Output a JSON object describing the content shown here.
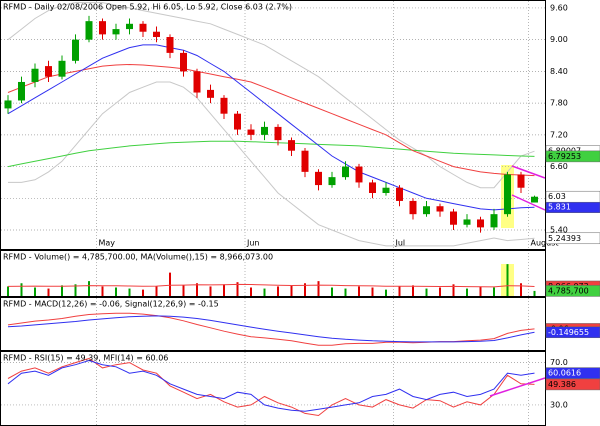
{
  "chart_data": [
    {
      "type": "candlestick",
      "title": "RFMD - Daily 02/08/2006 Open 5.92, Hi 6.05, Lo 5.92, Close 6.03 (2.7%)",
      "categories": [
        null,
        null,
        null,
        null,
        null,
        null,
        null,
        "May",
        null,
        null,
        null,
        null,
        null,
        null,
        null,
        null,
        null,
        null,
        "Jun",
        null,
        null,
        null,
        null,
        null,
        null,
        null,
        null,
        null,
        null,
        "Jul",
        null,
        null,
        null,
        null,
        null,
        null,
        null,
        null,
        null,
        "August"
      ],
      "open": [
        7.7,
        7.85,
        8.2,
        8.5,
        8.3,
        8.6,
        9.0,
        9.35,
        9.1,
        9.2,
        9.3,
        9.15,
        9.05,
        8.75,
        8.4,
        8.05,
        7.9,
        7.6,
        7.3,
        7.2,
        7.35,
        7.1,
        6.9,
        6.5,
        6.25,
        6.4,
        6.6,
        6.3,
        6.1,
        6.2,
        5.95,
        5.7,
        5.85,
        5.75,
        5.5,
        5.6,
        5.45,
        5.7,
        6.45,
        5.92
      ],
      "high": [
        7.95,
        8.3,
        8.55,
        8.6,
        8.7,
        9.1,
        9.45,
        9.4,
        9.3,
        9.4,
        9.35,
        9.25,
        9.1,
        8.8,
        8.45,
        8.15,
        7.95,
        7.65,
        7.4,
        7.45,
        7.4,
        7.15,
        6.95,
        6.55,
        6.5,
        6.7,
        6.65,
        6.35,
        6.3,
        6.25,
        6.0,
        5.95,
        5.9,
        5.8,
        5.7,
        5.65,
        5.8,
        6.5,
        6.5,
        6.05
      ],
      "low": [
        7.6,
        7.8,
        8.1,
        8.2,
        8.25,
        8.55,
        8.95,
        9.0,
        9.0,
        9.1,
        9.05,
        8.95,
        8.65,
        8.3,
        7.9,
        7.8,
        7.5,
        7.2,
        7.1,
        7.1,
        7.0,
        6.8,
        6.4,
        6.15,
        6.2,
        6.35,
        6.2,
        6.0,
        6.05,
        5.85,
        5.6,
        5.65,
        5.65,
        5.4,
        5.45,
        5.35,
        5.4,
        5.65,
        6.1,
        5.92
      ],
      "close": [
        7.85,
        8.2,
        8.45,
        8.3,
        8.6,
        9.0,
        9.35,
        9.1,
        9.2,
        9.3,
        9.15,
        9.05,
        8.75,
        8.4,
        8.0,
        7.9,
        7.6,
        7.3,
        7.2,
        7.35,
        7.1,
        6.9,
        6.5,
        6.25,
        6.4,
        6.6,
        6.3,
        6.1,
        6.2,
        5.95,
        5.7,
        5.85,
        5.75,
        5.5,
        5.6,
        5.45,
        5.7,
        6.45,
        6.2,
        6.03
      ],
      "up_color": "#00a000",
      "down_color": "#e00000",
      "close_box": "#ffffff",
      "series": [
        {
          "color": "#c8c8c8",
          "box": "#ffffff",
          "values": [
            9.0,
            9.2,
            9.4,
            9.55,
            9.65,
            9.7,
            9.7,
            9.7,
            9.65,
            9.6,
            9.55,
            9.5,
            9.45,
            9.4,
            9.35,
            9.3,
            9.2,
            9.1,
            9.0,
            8.9,
            8.75,
            8.6,
            8.45,
            8.3,
            8.1,
            7.9,
            7.7,
            7.5,
            7.3,
            7.1,
            6.95,
            6.8,
            6.6,
            6.45,
            6.3,
            6.2,
            6.2,
            6.5,
            6.8,
            6.89007
          ]
        },
        {
          "color": "#c8c8c8",
          "box": "#ffffff",
          "values": [
            6.3,
            6.3,
            6.35,
            6.5,
            6.7,
            7.0,
            7.3,
            7.6,
            7.8,
            8.0,
            8.1,
            8.2,
            8.2,
            8.1,
            7.9,
            7.6,
            7.3,
            7.0,
            6.7,
            6.4,
            6.1,
            5.9,
            5.7,
            5.5,
            5.4,
            5.3,
            5.2,
            5.15,
            5.1,
            5.1,
            5.1,
            5.1,
            5.1,
            5.1,
            5.15,
            5.2,
            5.25,
            5.2,
            5.22,
            5.24393
          ]
        },
        {
          "color": "#40d040",
          "box": "#40d040",
          "values": [
            6.6,
            6.65,
            6.7,
            6.75,
            6.8,
            6.85,
            6.9,
            6.93,
            6.96,
            6.99,
            7.01,
            7.03,
            7.05,
            7.06,
            7.07,
            7.08,
            7.08,
            7.08,
            7.07,
            7.06,
            7.05,
            7.04,
            7.03,
            7.02,
            7.01,
            7.0,
            6.99,
            6.97,
            6.95,
            6.93,
            6.91,
            6.89,
            6.87,
            6.85,
            6.84,
            6.83,
            6.82,
            6.81,
            6.8,
            6.79253
          ]
        },
        {
          "color": "#f04040",
          "values": [
            8.0,
            8.1,
            8.2,
            8.3,
            8.35,
            8.4,
            8.45,
            8.5,
            8.52,
            8.53,
            8.52,
            8.5,
            8.48,
            8.45,
            8.4,
            8.35,
            8.3,
            8.25,
            8.2,
            8.1,
            8.0,
            7.9,
            7.8,
            7.7,
            7.6,
            7.5,
            7.4,
            7.3,
            7.2,
            7.05,
            6.9,
            6.8,
            6.7,
            6.6,
            6.55,
            6.5,
            6.47,
            6.45,
            6.44,
            6.43
          ]
        },
        {
          "color": "#3030f0",
          "box": "#3030f0",
          "values": [
            7.6,
            7.75,
            7.9,
            8.05,
            8.2,
            8.35,
            8.5,
            8.65,
            8.75,
            8.85,
            8.9,
            8.9,
            8.85,
            8.8,
            8.7,
            8.55,
            8.4,
            8.2,
            8.0,
            7.8,
            7.6,
            7.4,
            7.2,
            7.0,
            6.8,
            6.65,
            6.5,
            6.4,
            6.3,
            6.2,
            6.1,
            6.0,
            5.95,
            5.9,
            5.85,
            5.8,
            5.78,
            5.8,
            5.82,
            5.831
          ]
        }
      ],
      "ylim": [
        5.06,
        9.75
      ],
      "yticks": [
        {
          "value": 5.4,
          "label": "5.40"
        },
        {
          "value": 6.0,
          "label": "6.00"
        },
        {
          "value": 6.6,
          "label": "6.60"
        },
        {
          "value": 7.2,
          "label": "7.20"
        },
        {
          "value": 7.8,
          "label": "7.80"
        },
        {
          "value": 8.4,
          "label": "8.40"
        },
        {
          "value": 9.0,
          "label": "9.00"
        },
        {
          "value": 9.6,
          "label": "9.60"
        }
      ],
      "grid": true
    },
    {
      "type": "bar",
      "title": "RFMD - Volume() = 4,785,700.00, MA(Volume(),15) = 8,966,073.00",
      "values": [
        9000000,
        12000000,
        8000000,
        7000000,
        10000000,
        11000000,
        14000000,
        9000000,
        8000000,
        7000000,
        6000000,
        9000000,
        22000000,
        10000000,
        12000000,
        9000000,
        11000000,
        13000000,
        8000000,
        7000000,
        9000000,
        10000000,
        12000000,
        14000000,
        8000000,
        7000000,
        9000000,
        8000000,
        6000000,
        9000000,
        10000000,
        7000000,
        8000000,
        11000000,
        7000000,
        9000000,
        8000000,
        30000000,
        12000000,
        4785700
      ],
      "value_labels": [
        null,
        null,
        null,
        null,
        null,
        null,
        null,
        null,
        null,
        null,
        null,
        null,
        null,
        null,
        null,
        null,
        null,
        null,
        null,
        null,
        null,
        null,
        null,
        null,
        null,
        null,
        null,
        null,
        null,
        null,
        null,
        null,
        null,
        null,
        null,
        null,
        null,
        null,
        null,
        "4,785,700"
      ],
      "box": "#40d040",
      "series": [
        {
          "color": "#f04040",
          "box": "#f04040",
          "values": [
            9000000,
            9200000,
            9300000,
            9100000,
            9200000,
            9400000,
            9800000,
            9700000,
            9600000,
            9400000,
            9200000,
            9300000,
            10200000,
            10300000,
            10500000,
            10400000,
            10600000,
            10900000,
            10800000,
            10400000,
            10100000,
            9900000,
            10000000,
            10300000,
            10100000,
            9800000,
            9700000,
            9500000,
            9200000,
            9100000,
            9200000,
            9000000,
            8900000,
            9000000,
            8800000,
            8700000,
            8600000,
            9700000,
            9500000,
            8966073
          ],
          "value_labels": [
            null,
            null,
            null,
            null,
            null,
            null,
            null,
            null,
            null,
            null,
            null,
            null,
            null,
            null,
            null,
            null,
            null,
            null,
            null,
            null,
            null,
            null,
            null,
            null,
            null,
            null,
            null,
            null,
            null,
            null,
            null,
            null,
            null,
            null,
            null,
            null,
            null,
            null,
            null,
            "8,966,073"
          ]
        }
      ],
      "ylim": [
        0,
        32000000
      ]
    },
    {
      "type": "line",
      "title": "RFMD - MACD(12,26) = -0.06, Signal(12,26,9) = -0.15",
      "series": [
        {
          "color": "#f04040",
          "box": "#f04040",
          "values": [
            0.05,
            0.1,
            0.15,
            0.18,
            0.22,
            0.28,
            0.33,
            0.35,
            0.36,
            0.36,
            0.34,
            0.3,
            0.24,
            0.16,
            0.06,
            -0.03,
            -0.12,
            -0.2,
            -0.27,
            -0.3,
            -0.34,
            -0.38,
            -0.44,
            -0.5,
            -0.5,
            -0.46,
            -0.45,
            -0.45,
            -0.42,
            -0.42,
            -0.43,
            -0.42,
            -0.4,
            -0.4,
            -0.38,
            -0.36,
            -0.32,
            -0.18,
            -0.1,
            -0.06
          ]
        },
        {
          "color": "#3030f0",
          "box": "#3030f0",
          "values": [
            0.0,
            0.02,
            0.05,
            0.08,
            0.11,
            0.14,
            0.18,
            0.21,
            0.24,
            0.27,
            0.28,
            0.29,
            0.28,
            0.26,
            0.22,
            0.17,
            0.11,
            0.05,
            -0.01,
            -0.07,
            -0.12,
            -0.17,
            -0.22,
            -0.27,
            -0.31,
            -0.34,
            -0.36,
            -0.38,
            -0.39,
            -0.4,
            -0.41,
            -0.41,
            -0.41,
            -0.41,
            -0.4,
            -0.39,
            -0.37,
            -0.3,
            -0.22,
            -0.149655
          ]
        }
      ],
      "ylim": [
        -0.6,
        0.45
      ]
    },
    {
      "type": "line",
      "title": "RFMD - RSI(15) = 49.39, MFI(14) = 60.06",
      "series": [
        {
          "color": "#f04040",
          "box": "#f04040",
          "values": [
            55,
            62,
            65,
            60,
            66,
            70,
            74,
            65,
            68,
            70,
            63,
            60,
            48,
            42,
            36,
            40,
            33,
            28,
            30,
            38,
            32,
            28,
            22,
            20,
            30,
            36,
            30,
            28,
            35,
            30,
            27,
            35,
            34,
            28,
            33,
            30,
            40,
            58,
            50,
            49.386
          ]
        },
        {
          "color": "#3030f0",
          "box": "#3030f0",
          "values": [
            50,
            60,
            62,
            58,
            65,
            68,
            72,
            68,
            66,
            60,
            62,
            58,
            50,
            45,
            40,
            38,
            36,
            42,
            40,
            30,
            27,
            25,
            24,
            26,
            28,
            30,
            32,
            38,
            40,
            45,
            38,
            35,
            40,
            42,
            38,
            40,
            45,
            60,
            58,
            60.0616
          ]
        }
      ],
      "ylim": [
        12,
        80
      ],
      "yticks": [
        {
          "value": 30,
          "label": "30.0"
        },
        {
          "value": 70,
          "label": "70.0"
        }
      ],
      "grid": true
    }
  ]
}
